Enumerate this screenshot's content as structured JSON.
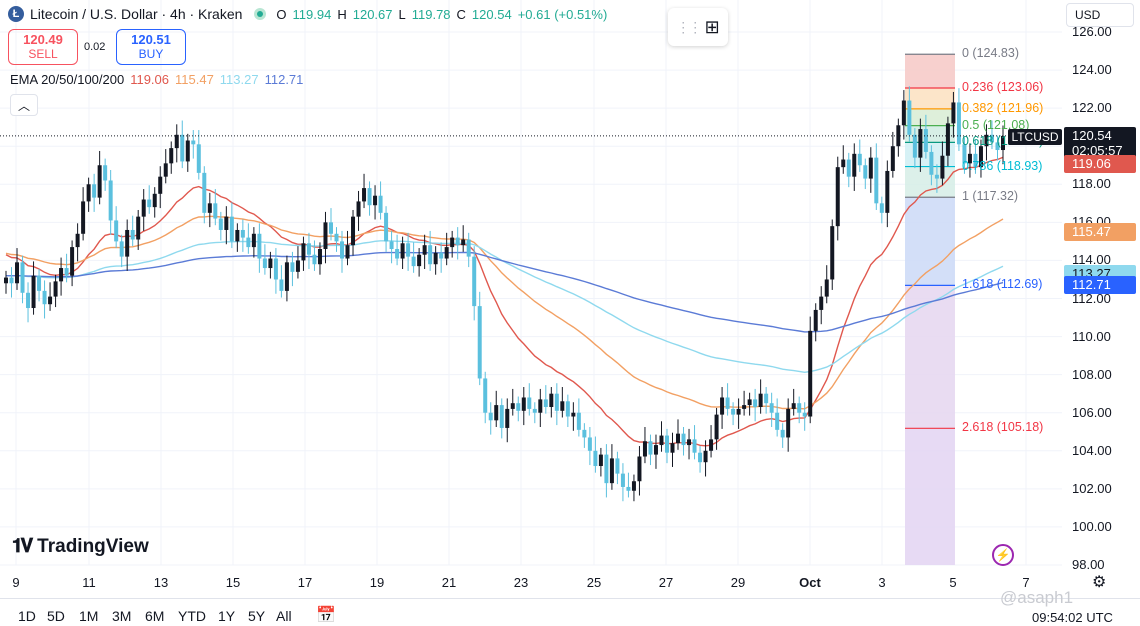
{
  "header": {
    "coin_letter": "Ł",
    "title": "Litecoin / U.S. Dollar · 4h · Kraken",
    "ohlc": [
      {
        "key": "O",
        "value": "119.94"
      },
      {
        "key": "H",
        "value": "120.67"
      },
      {
        "key": "L",
        "value": "119.78"
      },
      {
        "key": "C",
        "value": "120.54"
      }
    ],
    "change": "+0.61 (+0.51%)"
  },
  "trade": {
    "sell_price": "120.49",
    "sell_label": "SELL",
    "spread": "0.02",
    "buy_price": "120.51",
    "buy_label": "BUY"
  },
  "ema": {
    "label": "EMA 20/50/100/200",
    "values": [
      "119.06",
      "115.47",
      "113.27",
      "112.71"
    ],
    "colors": [
      "#e0584e",
      "#f2a063",
      "#8fd9ee",
      "#5b7bd6"
    ]
  },
  "currency": "USD",
  "price_axis": [
    "126.00",
    "124.00",
    "122.00",
    "120.00",
    "118.00",
    "116.00",
    "114.00",
    "112.00",
    "110.00",
    "108.00",
    "106.00",
    "104.00",
    "102.00",
    "100.00",
    "98.00"
  ],
  "price_tags": {
    "ema20": "119.06",
    "ema50": "115.47",
    "ema100": "113.27",
    "ema200": "112.71",
    "last_price": "120.54",
    "countdown": "02:05:57",
    "symbol": "LTCUSD"
  },
  "fib_levels": [
    {
      "label": "0 (124.83)",
      "price": 124.83,
      "color": "#787b86"
    },
    {
      "label": "0.236 (123.06)",
      "price": 123.06,
      "color": "#f23645"
    },
    {
      "label": "0.382 (121.96)",
      "price": 121.96,
      "color": "#ff9800"
    },
    {
      "label": "0.5 (121.08)",
      "price": 121.08,
      "color": "#4caf50"
    },
    {
      "label": "0.618 (120.20)",
      "price": 120.2,
      "color": "#089981"
    },
    {
      "label": "0.786 (118.93)",
      "price": 118.93,
      "color": "#00bcd4"
    },
    {
      "label": "1 (117.32)",
      "price": 117.32,
      "color": "#787b86"
    },
    {
      "label": "1.618 (112.69)",
      "price": 112.69,
      "color": "#2962ff"
    },
    {
      "label": "2.618 (105.18)",
      "price": 105.18,
      "color": "#f23645"
    }
  ],
  "date_axis": [
    "9",
    "11",
    "13",
    "15",
    "17",
    "19",
    "21",
    "23",
    "25",
    "27",
    "29",
    "Oct",
    "3",
    "5",
    "7"
  ],
  "ranges": [
    "1D",
    "5D",
    "1M",
    "3M",
    "6M",
    "YTD",
    "1Y",
    "5Y",
    "All"
  ],
  "time": "09:54:02 UTC",
  "brand": "TradingView",
  "watermark": "@asaph1",
  "chart_data": {
    "type": "candlestick",
    "title": "Litecoin / U.S. Dollar · 4h · Kraken",
    "ylim": [
      98,
      126
    ],
    "x_ticks": [
      "9",
      "11",
      "13",
      "15",
      "17",
      "19",
      "21",
      "23",
      "25",
      "27",
      "29",
      "Oct",
      "3",
      "5",
      "7"
    ],
    "closes": [
      113.1,
      112.8,
      113.9,
      112.3,
      111.5,
      113.2,
      112.4,
      111.7,
      112.1,
      112.9,
      113.6,
      113.2,
      114.7,
      115.4,
      117.1,
      118.0,
      117.3,
      119.0,
      118.2,
      116.1,
      115.0,
      114.2,
      115.6,
      115.1,
      116.3,
      117.2,
      116.8,
      117.5,
      118.4,
      119.1,
      119.9,
      120.6,
      119.2,
      120.3,
      120.1,
      118.6,
      116.5,
      117.0,
      116.2,
      115.6,
      116.3,
      115.0,
      115.6,
      115.2,
      114.7,
      115.4,
      114.1,
      113.6,
      114.1,
      113.0,
      112.4,
      113.9,
      113.4,
      114.0,
      114.9,
      114.3,
      113.8,
      114.6,
      116.0,
      115.4,
      115.0,
      114.1,
      114.8,
      116.3,
      117.1,
      117.8,
      116.9,
      117.4,
      116.5,
      115.0,
      114.6,
      114.1,
      114.9,
      114.2,
      113.7,
      114.3,
      114.8,
      113.8,
      114.4,
      114.1,
      114.7,
      115.2,
      114.8,
      115.1,
      114.2,
      111.6,
      107.8,
      106.0,
      105.6,
      106.4,
      105.2,
      106.2,
      106.5,
      106.1,
      106.8,
      106.2,
      106.0,
      106.7,
      106.3,
      107.0,
      106.1,
      106.6,
      105.8,
      106.0,
      105.1,
      104.7,
      104.0,
      103.2,
      103.8,
      102.3,
      103.6,
      102.8,
      102.1,
      101.9,
      102.4,
      103.7,
      104.5,
      103.8,
      104.3,
      104.8,
      103.9,
      104.4,
      104.9,
      104.3,
      104.6,
      103.9,
      103.4,
      104.0,
      104.6,
      105.9,
      106.8,
      106.2,
      105.9,
      106.2,
      106.4,
      106.7,
      106.3,
      107.0,
      106.5,
      106.0,
      105.1,
      104.7,
      106.2,
      106.5,
      106.0,
      105.8,
      110.3,
      111.4,
      112.1,
      113.0,
      115.8,
      118.9,
      119.3,
      118.4,
      119.6,
      119.0,
      118.3,
      119.4,
      117.0,
      116.5,
      118.7,
      120.0,
      121.1,
      122.4,
      120.6,
      119.4,
      120.9,
      119.7,
      118.5,
      118.3,
      119.5,
      121.2,
      122.3,
      120.1,
      119.1,
      119.6,
      118.9,
      120.0,
      120.6,
      120.2,
      119.8,
      120.54
    ]
  }
}
